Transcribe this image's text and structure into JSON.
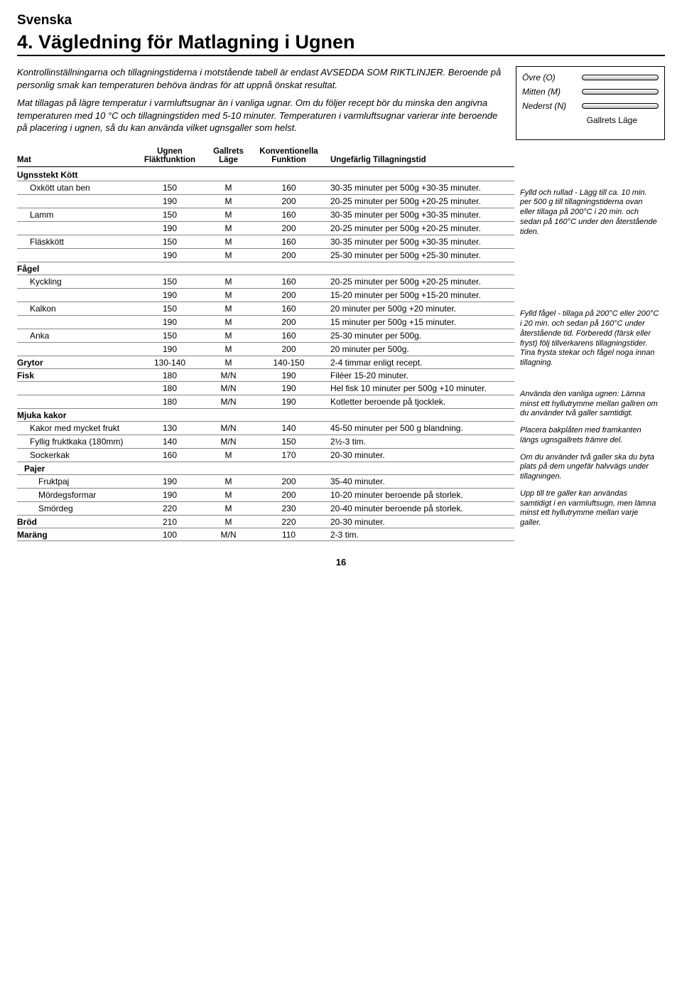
{
  "lang": "Svenska",
  "title": "4. Vägledning för Matlagning i Ugnen",
  "intro": {
    "p1": "Kontrollinställningarna och tillagningstiderna i motstående tabell är endast AVSEDDA SOM RIKTLINJER. Beroende på personlig smak kan temperaturen behöva ändras för att uppnå önskat resultat.",
    "p2": "Mat tillagas på lägre temperatur i varmluftsugnar än i vanliga ugnar. Om du följer recept bör du minska den angivna temperaturen med 10 °C och tillagningstiden med 5-10 minuter. Temperaturen i varmluftsugnar varierar inte beroende på placering i ugnen, så du kan använda vilket ugnsgaller som helst."
  },
  "rack": {
    "o": "Övre (O)",
    "m": "Mitten (M)",
    "n": "Nederst (N)",
    "caption": "Gallrets Läge"
  },
  "headers": {
    "mat": "Mat",
    "ugnen": "Ugnen",
    "flak": "Fläktfunktion",
    "gallrets": "Gallrets",
    "lage": "Läge",
    "konv": "Konventionella",
    "funk": "Funktion",
    "tid": "Ungefärlig Tillagningstid"
  },
  "sections": [
    {
      "type": "header",
      "label": "Ugnsstekt Kött"
    },
    {
      "type": "row",
      "indent": true,
      "name": "Oxkött utan ben",
      "fan": "150",
      "pos": "M",
      "conv": "160",
      "time": "30-35 minuter per 500g +30-35 minuter."
    },
    {
      "type": "row",
      "indent": true,
      "name": "",
      "fan": "190",
      "pos": "M",
      "conv": "200",
      "time": "20-25 minuter per 500g +20-25 minuter."
    },
    {
      "type": "row",
      "indent": true,
      "name": "Lamm",
      "fan": "150",
      "pos": "M",
      "conv": "160",
      "time": "30-35 minuter per 500g +30-35 minuter."
    },
    {
      "type": "row",
      "indent": true,
      "name": "",
      "fan": "190",
      "pos": "M",
      "conv": "200",
      "time": "20-25 minuter per 500g +20-25 minuter."
    },
    {
      "type": "row",
      "indent": true,
      "name": "Fläskkött",
      "fan": "150",
      "pos": "M",
      "conv": "160",
      "time": "30-35 minuter per 500g +30-35 minuter."
    },
    {
      "type": "row",
      "indent": true,
      "name": "",
      "fan": "190",
      "pos": "M",
      "conv": "200",
      "time": "25-30 minuter per 500g +25-30 minuter."
    },
    {
      "type": "header",
      "label": "Fågel"
    },
    {
      "type": "row",
      "indent": true,
      "name": "Kyckling",
      "fan": "150",
      "pos": "M",
      "conv": "160",
      "time": "20-25 minuter per 500g +20-25 minuter."
    },
    {
      "type": "row",
      "indent": true,
      "name": "",
      "fan": "190",
      "pos": "M",
      "conv": "200",
      "time": "15-20 minuter per 500g +15-20 minuter."
    },
    {
      "type": "row",
      "indent": true,
      "name": "Kalkon",
      "fan": "150",
      "pos": "M",
      "conv": "160",
      "time": "20 minuter per 500g +20 minuter."
    },
    {
      "type": "row",
      "indent": true,
      "name": "",
      "fan": "190",
      "pos": "M",
      "conv": "200",
      "time": "15 minuter per 500g +15 minuter."
    },
    {
      "type": "row",
      "indent": true,
      "name": "Anka",
      "fan": "150",
      "pos": "M",
      "conv": "160",
      "time": "25-30 minuter per 500g."
    },
    {
      "type": "row",
      "indent": true,
      "name": "",
      "fan": "190",
      "pos": "M",
      "conv": "200",
      "time": "20 minuter per 500g."
    },
    {
      "type": "cat",
      "name": "Grytor",
      "fan": "130-140",
      "pos": "M",
      "conv": "140-150",
      "time": "2-4 timmar enligt recept."
    },
    {
      "type": "cat",
      "name": "Fisk",
      "fan": "180",
      "pos": "M/N",
      "conv": "190",
      "time": "Filéer 15-20 minuter."
    },
    {
      "type": "row",
      "indent": true,
      "name": "",
      "fan": "180",
      "pos": "M/N",
      "conv": "190",
      "time": "Hel fisk 10 minuter per 500g +10 minuter."
    },
    {
      "type": "row",
      "indent": true,
      "name": "",
      "fan": "180",
      "pos": "M/N",
      "conv": "190",
      "time": "Kotletter beroende på tjocklek."
    },
    {
      "type": "header",
      "label": "Mjuka kakor"
    },
    {
      "type": "row",
      "indent": true,
      "name": "Kakor med mycket frukt",
      "fan": "130",
      "pos": "M/N",
      "conv": "140",
      "time": "45-50 minuter per 500 g blandning."
    },
    {
      "type": "row",
      "indent": true,
      "name": "Fyllig fruktkaka (180mm)",
      "fan": "140",
      "pos": "M/N",
      "conv": "150",
      "time": "2½-3 tim."
    },
    {
      "type": "row",
      "indent": true,
      "name": "Sockerkak",
      "fan": "160",
      "pos": "M",
      "conv": "170",
      "time": "20-30 minuter."
    },
    {
      "type": "header",
      "label": "Pajer",
      "indent": true
    },
    {
      "type": "row",
      "indent": true,
      "indent2": true,
      "name": "Fruktpaj",
      "fan": "190",
      "pos": "M",
      "conv": "200",
      "time": "35-40 minuter."
    },
    {
      "type": "row",
      "indent": true,
      "indent2": true,
      "name": "Mördegsformar",
      "fan": "190",
      "pos": "M",
      "conv": "200",
      "time": "10-20 minuter beroende på storlek."
    },
    {
      "type": "row",
      "indent": true,
      "indent2": true,
      "name": "Smördeg",
      "fan": "220",
      "pos": "M",
      "conv": "230",
      "time": "20-40 minuter beroende på storlek."
    },
    {
      "type": "cat",
      "name": "Bröd",
      "fan": "210",
      "pos": "M",
      "conv": "220",
      "time": "20-30 minuter."
    },
    {
      "type": "cat",
      "name": "Maräng",
      "fan": "100",
      "pos": "M/N",
      "conv": "110",
      "time": "2-3 tim."
    }
  ],
  "notes": {
    "n1": "Fylld och rullad - Lägg till ca. 10 min. per 500 g till tillagnings­tiderna ovan eller tillaga på 200°C i 20 min. och sedan på 160°C under den återstående tiden.",
    "n2": "Fylld fågel - tillaga på 200°C eller 200°C i 20 min. och sedan på 160°C under återstående tid. Förberedd (färsk eller fryst) följ tillverkarens tillagningstider. Tina frysta stekar och fågel noga innan tillagning.",
    "n3": "Använda den vanliga ugnen: Lämna minst ett hyllutrymme mellan gallren om du använder två galler samtidigt.",
    "n4": "Placera bakplåten med framkanten längs ugnsgallrets främre del.",
    "n5": "Om du använder två galler ska du byta plats på dem ungefär halvvägs under tillagningen.",
    "n6": "Upp till tre galler kan användas samtidigt i en varmluftsugn, men lämna minst ett hyllutrymme mellan varje galler."
  },
  "pageNumber": "16"
}
